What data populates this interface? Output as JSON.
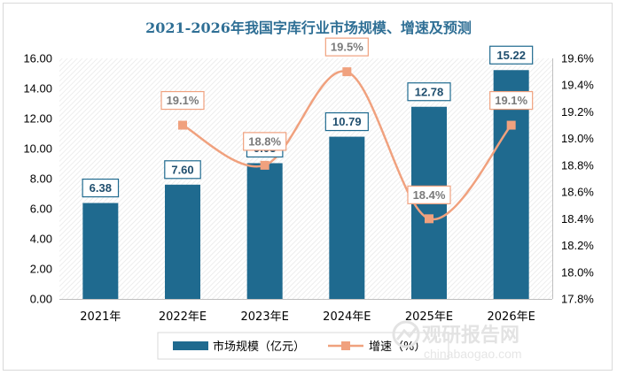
{
  "chart_data": {
    "type": "bar",
    "title": "2021-2026年我国字库行业市场规模、增速及预测",
    "categories": [
      "2021年",
      "2022年E",
      "2023年E",
      "2024年E",
      "2025年E",
      "2026年E"
    ],
    "series": [
      {
        "name": "市场规模（亿元）",
        "type": "bar",
        "axis": "left",
        "color": "#1f6a8f",
        "values": [
          6.38,
          7.6,
          9.03,
          10.79,
          12.78,
          15.22
        ],
        "labels": [
          "6.38",
          "7.60",
          "9.03",
          "10.79",
          "12.78",
          "15.22"
        ]
      },
      {
        "name": "增速（%）",
        "type": "line",
        "axis": "right",
        "color": "#f0a17e",
        "values": [
          null,
          19.1,
          18.8,
          19.5,
          18.4,
          19.1
        ],
        "labels": [
          null,
          "19.1%",
          "18.8%",
          "19.5%",
          "18.4%",
          "19.1%"
        ]
      }
    ],
    "y_left": {
      "min": 0,
      "max": 16,
      "step": 2,
      "ticks": [
        "0.00",
        "2.00",
        "4.00",
        "6.00",
        "8.00",
        "10.00",
        "12.00",
        "14.00",
        "16.00"
      ]
    },
    "y_right": {
      "min": 17.8,
      "max": 19.6,
      "step": 0.2,
      "ticks": [
        "17.8%",
        "18.0%",
        "18.2%",
        "18.4%",
        "18.6%",
        "18.8%",
        "19.0%",
        "19.2%",
        "19.4%",
        "19.6%"
      ]
    },
    "legend_position": "bottom",
    "grid": false,
    "watermark": {
      "brand": "观研报告网",
      "url": "chinabaogao.com"
    }
  }
}
